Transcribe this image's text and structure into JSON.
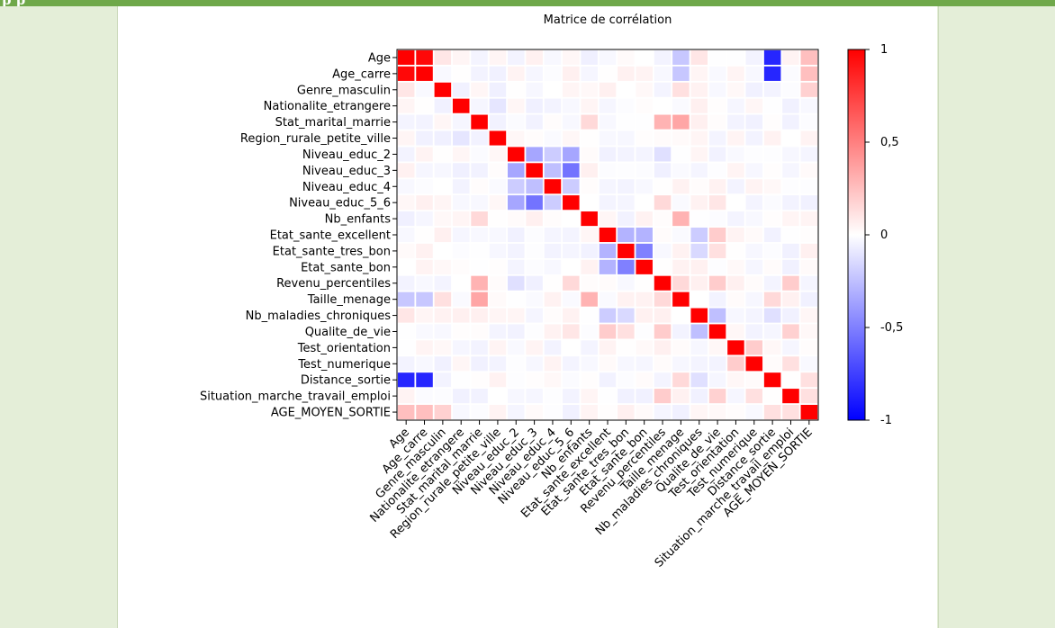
{
  "page": {
    "top_fragment": "p p"
  },
  "chart_data": {
    "type": "heatmap",
    "title": "Matrice de corrélation",
    "variables": [
      "Age",
      "Age_carre",
      "Genre_masculin",
      "Nationalite_etrangere",
      "Stat_marital_marrie",
      "Region_rurale_petite_ville",
      "Niveau_educ_2",
      "Niveau_educ_3",
      "Niveau_educ_4",
      "Niveau_educ_5_6",
      "Nb_enfants",
      "Etat_sante_excellent",
      "Etat_sante_tres_bon",
      "Etat_sante_bon",
      "Revenu_percentiles",
      "Taille_menage",
      "Nb_maladies_chroniques",
      "Qualite_de_vie",
      "Test_orientation",
      "Test_numerique",
      "Distance_sortie",
      "Situation_marche_travail_emploi",
      "AGE_MOYEN_SORTIE"
    ],
    "color_scale": {
      "min": -1,
      "max": 1,
      "ticks": [
        1,
        0.5,
        0,
        -0.5,
        -1
      ],
      "tick_labels": [
        "1",
        "0,5",
        "0",
        "-0,5",
        "-1"
      ],
      "colors": {
        "negative": "#0000ff",
        "zero": "#ffffff",
        "positive": "#ff0000"
      }
    },
    "notable_correlations": [
      {
        "a": "Age",
        "b": "Age_carre",
        "r": 0.97
      },
      {
        "a": "Age",
        "b": "Distance_sortie",
        "r": -0.85
      },
      {
        "a": "Age_carre",
        "b": "Distance_sortie",
        "r": -0.85
      },
      {
        "a": "Age",
        "b": "AGE_MOYEN_SORTIE",
        "r": 0.25
      },
      {
        "a": "Age_carre",
        "b": "AGE_MOYEN_SORTIE",
        "r": 0.25
      },
      {
        "a": "Age",
        "b": "Taille_menage",
        "r": -0.22
      },
      {
        "a": "Age_carre",
        "b": "Taille_menage",
        "r": -0.22
      },
      {
        "a": "Age",
        "b": "Genre_masculin",
        "r": 0.1
      },
      {
        "a": "Age",
        "b": "Nb_maladies_chroniques",
        "r": 0.1
      },
      {
        "a": "Genre_masculin",
        "b": "AGE_MOYEN_SORTIE",
        "r": 0.18
      },
      {
        "a": "Genre_masculin",
        "b": "Taille_menage",
        "r": 0.12
      },
      {
        "a": "Stat_marital_marrie",
        "b": "Revenu_percentiles",
        "r": 0.3
      },
      {
        "a": "Stat_marital_marrie",
        "b": "Taille_menage",
        "r": 0.35
      },
      {
        "a": "Stat_marital_marrie",
        "b": "Nb_enfants",
        "r": 0.15
      },
      {
        "a": "Region_rurale_petite_ville",
        "b": "Nationalite_etrangere",
        "r": -0.1
      },
      {
        "a": "Niveau_educ_2",
        "b": "Niveau_educ_3",
        "r": -0.35
      },
      {
        "a": "Niveau_educ_2",
        "b": "Niveau_educ_4",
        "r": -0.2
      },
      {
        "a": "Niveau_educ_2",
        "b": "Niveau_educ_5_6",
        "r": -0.35
      },
      {
        "a": "Niveau_educ_3",
        "b": "Niveau_educ_4",
        "r": -0.25
      },
      {
        "a": "Niveau_educ_3",
        "b": "Niveau_educ_5_6",
        "r": -0.55
      },
      {
        "a": "Niveau_educ_4",
        "b": "Niveau_educ_5_6",
        "r": -0.2
      },
      {
        "a": "Niveau_educ_5_6",
        "b": "Revenu_percentiles",
        "r": 0.15
      },
      {
        "a": "Niveau_educ_5_6",
        "b": "Qualite_de_vie",
        "r": 0.1
      },
      {
        "a": "Niveau_educ_2",
        "b": "Revenu_percentiles",
        "r": -0.12
      },
      {
        "a": "Nb_enfants",
        "b": "Taille_menage",
        "r": 0.3
      },
      {
        "a": "Etat_sante_excellent",
        "b": "Etat_sante_tres_bon",
        "r": -0.3
      },
      {
        "a": "Etat_sante_excellent",
        "b": "Etat_sante_bon",
        "r": -0.3
      },
      {
        "a": "Etat_sante_tres_bon",
        "b": "Etat_sante_bon",
        "r": -0.5
      },
      {
        "a": "Etat_sante_excellent",
        "b": "Nb_maladies_chroniques",
        "r": -0.2
      },
      {
        "a": "Etat_sante_tres_bon",
        "b": "Nb_maladies_chroniques",
        "r": -0.15
      },
      {
        "a": "Etat_sante_excellent",
        "b": "Qualite_de_vie",
        "r": 0.2
      },
      {
        "a": "Etat_sante_tres_bon",
        "b": "Qualite_de_vie",
        "r": 0.12
      },
      {
        "a": "Revenu_percentiles",
        "b": "Qualite_de_vie",
        "r": 0.2
      },
      {
        "a": "Revenu_percentiles",
        "b": "Taille_menage",
        "r": 0.15
      },
      {
        "a": "Revenu_percentiles",
        "b": "Situation_marche_travail_emploi",
        "r": 0.2
      },
      {
        "a": "Taille_menage",
        "b": "Distance_sortie",
        "r": 0.15
      },
      {
        "a": "Nb_maladies_chroniques",
        "b": "Qualite_de_vie",
        "r": -0.25
      },
      {
        "a": "Nb_maladies_chroniques",
        "b": "Distance_sortie",
        "r": -0.12
      },
      {
        "a": "Qualite_de_vie",
        "b": "Situation_marche_travail_emploi",
        "r": 0.18
      },
      {
        "a": "Test_orientation",
        "b": "Test_numerique",
        "r": 0.2
      },
      {
        "a": "Test_numerique",
        "b": "Situation_marche_travail_emploi",
        "r": 0.12
      },
      {
        "a": "Distance_sortie",
        "b": "AGE_MOYEN_SORTIE",
        "r": 0.12
      },
      {
        "a": "Situation_marche_travail_emploi",
        "b": "AGE_MOYEN_SORTIE",
        "r": 0.12
      }
    ]
  }
}
